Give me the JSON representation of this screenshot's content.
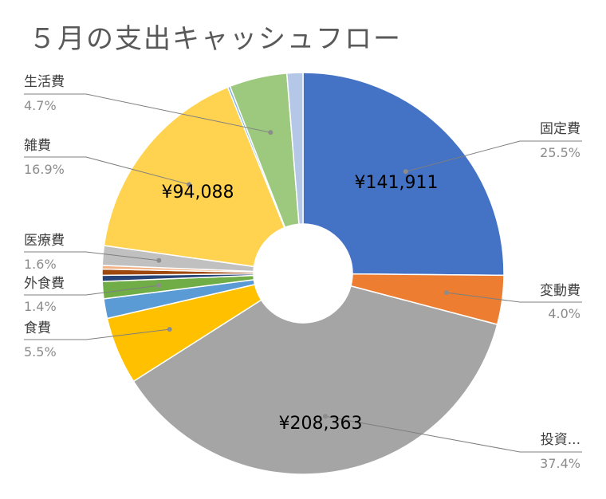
{
  "chart_data": {
    "type": "pie",
    "variant": "doughnut",
    "title": "５月の支出キャッシュフロー",
    "slices": [
      {
        "name": "固定費",
        "percent": 25.5,
        "value": 141911,
        "value_label": "¥141,911",
        "color": "#4472C4"
      },
      {
        "name": "変動費",
        "percent": 4.0,
        "color": "#ED7D31"
      },
      {
        "name": "投資...",
        "percent": 37.4,
        "value": 208363,
        "value_label": "¥208,363",
        "color": "#A5A5A5"
      },
      {
        "name": "食費",
        "percent": 5.5,
        "color": "#FFC000"
      },
      {
        "name": "",
        "percent": 1.6,
        "color": "#5B9BD5"
      },
      {
        "name": "外食費",
        "percent": 1.4,
        "color": "#70AD47"
      },
      {
        "name": "",
        "percent": 0.5,
        "color": "#264478"
      },
      {
        "name": "",
        "percent": 0.5,
        "color": "#9E480E"
      },
      {
        "name": "",
        "percent": 0.3,
        "color": "#F4B183"
      },
      {
        "name": "医療費",
        "percent": 1.6,
        "color": "#C0C0C0"
      },
      {
        "name": "雑費",
        "percent": 16.9,
        "value": 94088,
        "value_label": "¥94,088",
        "color": "#FFD34F"
      },
      {
        "name": "",
        "percent": 0.2,
        "color": "#7FB2E0"
      },
      {
        "name": "生活費",
        "percent": 4.7,
        "color": "#9DC97F"
      },
      {
        "name": "",
        "percent": 1.3,
        "color": "#B4C7E7"
      }
    ]
  },
  "labels": [
    {
      "name": "固定費",
      "pct": "25.5%"
    },
    {
      "name": "変動費",
      "pct": "4.0%"
    },
    {
      "name": "投資...",
      "pct": "37.4%"
    },
    {
      "name": "食費",
      "pct": "5.5%"
    },
    {
      "name": "外食費",
      "pct": "1.4%"
    },
    {
      "name": "医療費",
      "pct": "1.6%"
    },
    {
      "name": "雑費",
      "pct": "16.9%"
    },
    {
      "name": "生活費",
      "pct": "4.7%"
    }
  ]
}
